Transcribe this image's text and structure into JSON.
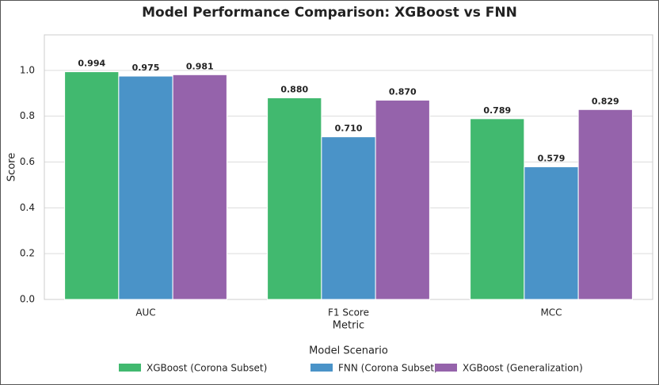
{
  "chart_data": {
    "type": "bar",
    "title": "Model Performance Comparison: XGBoost vs FNN",
    "x_label": "Metric",
    "y_label": "Score",
    "categories": [
      "AUC",
      "F1 Score",
      "MCC"
    ],
    "series": [
      {
        "name": "XGBoost (Corona Subset)",
        "color": "#41b96f",
        "values": [
          0.994,
          0.88,
          0.789
        ],
        "value_labels": [
          "0.994",
          "0.880",
          "0.789"
        ]
      },
      {
        "name": "FNN (Corona Subset)",
        "color": "#4a93c8",
        "values": [
          0.975,
          0.71,
          0.579
        ],
        "value_labels": [
          "0.975",
          "0.710",
          "0.579"
        ]
      },
      {
        "name": "XGBoost (Generalization)",
        "color": "#9563ab",
        "values": [
          0.981,
          0.87,
          0.829
        ],
        "value_labels": [
          "0.981",
          "0.870",
          "0.829"
        ]
      }
    ],
    "legend_title": "Model Scenario",
    "legend": "bottom",
    "ylim": [
      0,
      1.155
    ],
    "yticks": [
      {
        "value": 0,
        "label": "0.0"
      },
      0.2,
      0.4,
      0.6,
      0.8,
      {
        "value": 1,
        "label": "1.0"
      }
    ],
    "grid": true
  }
}
